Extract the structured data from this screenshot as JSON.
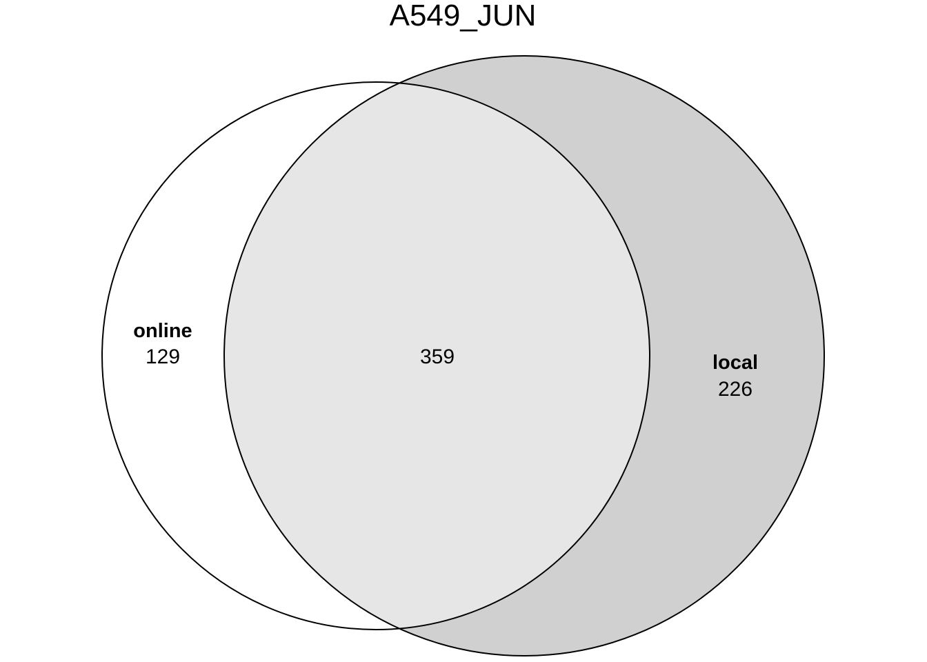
{
  "title": "A549_JUN",
  "sets": [
    {
      "name": "online",
      "only_count": "129",
      "fill": "#ffffff"
    },
    {
      "name": "local",
      "only_count": "226",
      "fill": "#d0d0d0"
    }
  ],
  "intersection": {
    "count": "359",
    "fill": "#e6e6e6"
  },
  "colors": {
    "stroke": "#000000",
    "background": "#ffffff"
  }
}
